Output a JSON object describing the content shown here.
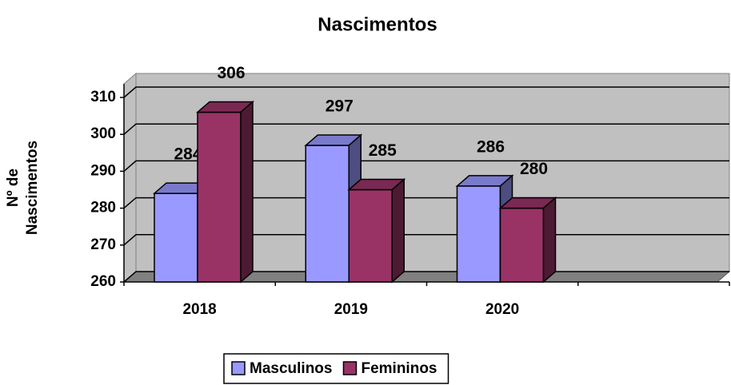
{
  "chart_data": {
    "type": "bar3d",
    "title": "Nascimentos",
    "ylabel": "Nº de Nascimentos",
    "categories": [
      "2018",
      "2019",
      "2020",
      null
    ],
    "series": [
      {
        "name": "Masculinos",
        "color": "#9999ff",
        "values": [
          284,
          297,
          286,
          null
        ]
      },
      {
        "name": "Femininos",
        "color": "#993366",
        "values": [
          306,
          285,
          280,
          null
        ]
      }
    ],
    "ylim": [
      260,
      310
    ],
    "yticks": [
      260,
      270,
      280,
      290,
      300,
      310
    ],
    "grid": true,
    "legend": "bottom"
  }
}
